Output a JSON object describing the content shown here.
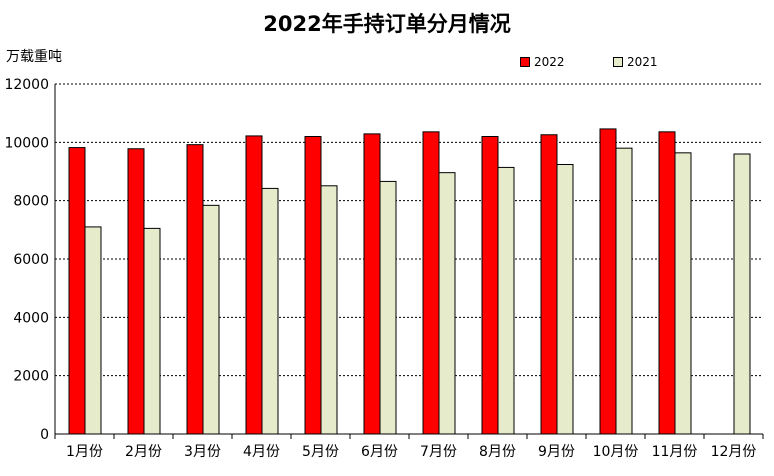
{
  "chart_data": {
    "type": "bar",
    "title": "2022年手持订单分月情况",
    "ylabel": "万载重吨",
    "xlabel": "",
    "categories": [
      "1月份",
      "2月份",
      "3月份",
      "4月份",
      "5月份",
      "6月份",
      "7月份",
      "8月份",
      "9月份",
      "10月份",
      "11月份",
      "12月份"
    ],
    "series": [
      {
        "name": "2022",
        "color": "#ff0000",
        "values": [
          9820,
          9780,
          9920,
          10220,
          10200,
          10290,
          10360,
          10200,
          10260,
          10460,
          10360,
          null
        ]
      },
      {
        "name": "2021",
        "color": "#e6ebcc",
        "values": [
          7100,
          7050,
          7840,
          8420,
          8510,
          8660,
          8960,
          9140,
          9240,
          9800,
          9640,
          9600
        ]
      }
    ],
    "ylim": [
      0,
      12000
    ],
    "yticks": [
      "0",
      "2000",
      "4000",
      "6000",
      "8000",
      "10000",
      "12000"
    ],
    "grid": true,
    "legend_position": "top-right"
  }
}
